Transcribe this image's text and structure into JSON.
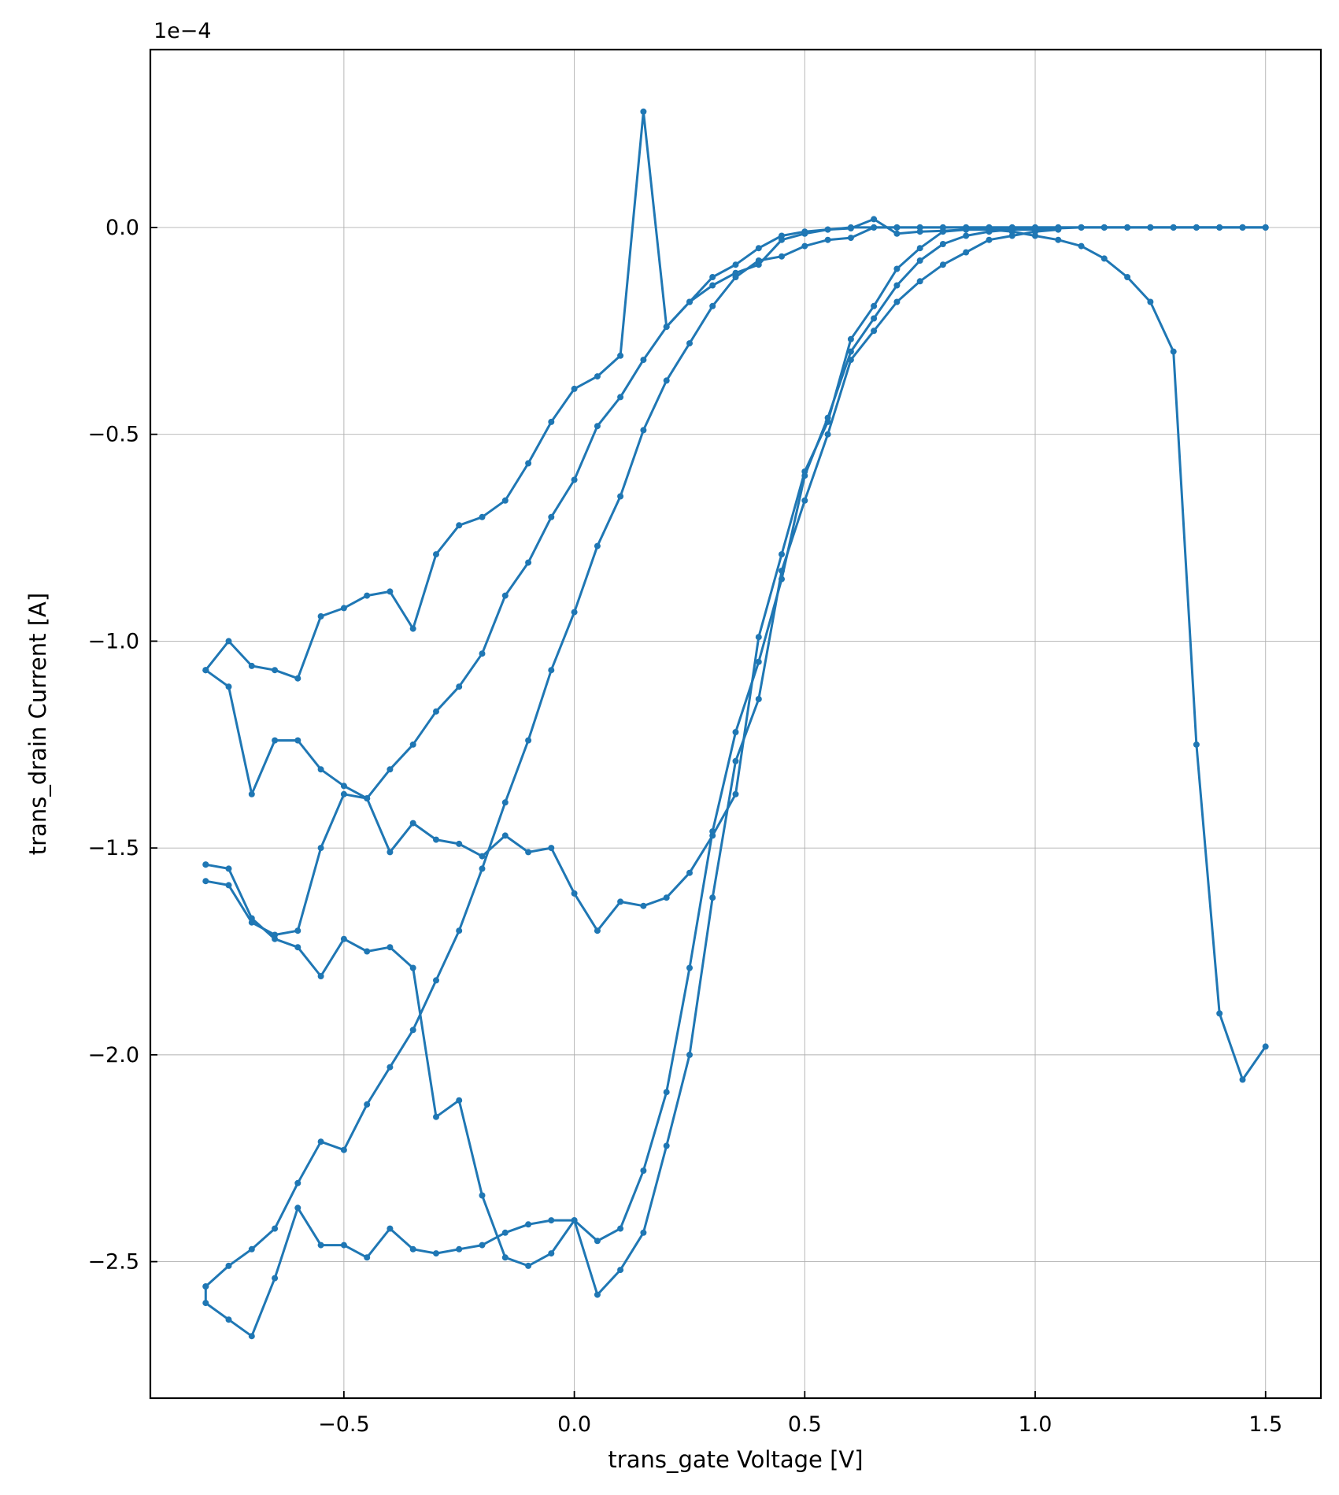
{
  "chart_data": {
    "type": "line",
    "xlabel": "trans_gate Voltage [V]",
    "ylabel": "trans_drain Current [A]",
    "y_offset_label": "1e−4",
    "xlim": [
      -0.92,
      1.62
    ],
    "ylim": [
      -2.83,
      0.43
    ],
    "grid": true,
    "color": "#1f77b4",
    "x_ticks": [
      {
        "value": -0.5,
        "label": "−0.5"
      },
      {
        "value": 0.0,
        "label": "0.0"
      },
      {
        "value": 0.5,
        "label": "0.5"
      },
      {
        "value": 1.0,
        "label": "1.0"
      },
      {
        "value": 1.5,
        "label": "1.5"
      }
    ],
    "y_ticks": [
      {
        "value": 0.0,
        "label": "0.0"
      },
      {
        "value": -0.5,
        "label": "−0.5"
      },
      {
        "value": -1.0,
        "label": "−1.0"
      },
      {
        "value": -1.5,
        "label": "−1.5"
      },
      {
        "value": -2.0,
        "label": "−2.0"
      },
      {
        "value": -2.5,
        "label": "−2.5"
      }
    ],
    "series": [
      {
        "x": [
          -0.8,
          -0.75,
          -0.7,
          -0.65,
          -0.6,
          -0.55,
          -0.5,
          -0.45,
          -0.4,
          -0.35,
          -0.3,
          -0.25,
          -0.2,
          -0.15,
          -0.1,
          -0.05,
          0.0,
          0.05,
          0.1,
          0.15,
          0.2,
          0.25,
          0.3,
          0.35,
          0.4,
          0.45,
          0.5,
          0.55,
          0.6,
          0.65,
          0.7,
          0.75,
          0.8,
          0.85,
          0.9,
          0.95,
          1.0,
          1.05,
          1.1,
          1.15,
          1.2,
          1.25,
          1.3,
          1.35,
          1.4,
          1.45,
          1.5
        ],
        "y": [
          -1.07,
          -1.0,
          -1.06,
          -1.07,
          -1.09,
          -0.94,
          -0.92,
          -0.89,
          -0.88,
          -0.97,
          -0.79,
          -0.72,
          -0.7,
          -0.66,
          -0.57,
          -0.47,
          -0.39,
          -0.36,
          -0.31,
          0.28,
          -0.24,
          -0.18,
          -0.12,
          -0.09,
          -0.05,
          -0.02,
          -0.01,
          -0.005,
          -0.002,
          0.02,
          -0.015,
          -0.01,
          -0.008,
          -0.005,
          -0.005,
          -0.005,
          -0.005,
          -0.002,
          0,
          0,
          0,
          0,
          0,
          0,
          0,
          0,
          0
        ]
      },
      {
        "x": [
          -0.8,
          -0.75,
          -0.7,
          -0.65,
          -0.6,
          -0.55,
          -0.5,
          -0.45,
          -0.4,
          -0.35,
          -0.3,
          -0.25,
          -0.2,
          -0.15,
          -0.1,
          -0.05,
          0.0,
          0.05,
          0.1,
          0.15,
          0.2,
          0.25,
          0.3,
          0.35,
          0.4,
          0.45,
          0.5,
          0.55,
          0.6,
          0.65,
          0.7,
          0.75,
          0.8,
          0.85,
          0.9,
          0.95,
          1.0,
          1.05,
          1.1,
          1.15,
          1.2,
          1.25,
          1.3,
          1.35,
          1.4,
          1.45,
          1.5
        ],
        "y": [
          -1.58,
          -1.59,
          -1.68,
          -1.71,
          -1.7,
          -1.5,
          -1.37,
          -1.38,
          -1.31,
          -1.25,
          -1.17,
          -1.11,
          -1.03,
          -0.89,
          -0.81,
          -0.7,
          -0.61,
          -0.48,
          -0.41,
          -0.32,
          -0.24,
          -0.18,
          -0.14,
          -0.11,
          -0.09,
          -0.03,
          -0.015,
          -0.005,
          0,
          0,
          0,
          0,
          0,
          0,
          0,
          0,
          0,
          0,
          0,
          0,
          0,
          0,
          0,
          0,
          0,
          0,
          0
        ]
      },
      {
        "x": [
          -0.8,
          -0.75,
          -0.7,
          -0.65,
          -0.6,
          -0.55,
          -0.5,
          -0.45,
          -0.4,
          -0.35,
          -0.3,
          -0.25,
          -0.2,
          -0.15,
          -0.1,
          -0.05,
          0.0,
          0.05,
          0.1,
          0.15,
          0.2,
          0.25,
          0.3,
          0.35,
          0.4,
          0.45,
          0.5,
          0.55,
          0.6,
          0.65,
          0.7,
          0.75,
          0.8,
          0.85,
          0.9,
          0.95,
          1.0,
          1.05,
          1.1,
          1.15,
          1.2,
          1.25,
          1.3,
          1.35,
          1.4,
          1.45,
          1.5
        ],
        "y": [
          -2.56,
          -2.51,
          -2.47,
          -2.42,
          -2.31,
          -2.21,
          -2.23,
          -2.12,
          -2.03,
          -1.94,
          -1.82,
          -1.7,
          -1.55,
          -1.39,
          -1.24,
          -1.07,
          -0.93,
          -0.77,
          -0.65,
          -0.49,
          -0.37,
          -0.28,
          -0.19,
          -0.12,
          -0.08,
          -0.07,
          -0.045,
          -0.03,
          -0.025,
          0,
          0,
          0,
          0,
          0,
          0,
          0,
          0,
          0,
          0,
          0,
          0,
          0,
          0,
          0,
          0,
          0,
          0
        ]
      },
      {
        "x": [
          -0.8,
          -0.8,
          -0.75,
          -0.7,
          -0.65,
          -0.6,
          -0.55,
          -0.5,
          -0.45,
          -0.4,
          -0.35,
          -0.3,
          -0.25,
          -0.2,
          -0.15,
          -0.1,
          -0.05,
          0.0,
          0.05,
          0.1,
          0.15,
          0.2,
          0.25,
          0.3,
          0.35,
          0.4,
          0.45,
          0.5,
          0.55,
          0.6,
          0.65,
          0.7,
          0.75,
          0.8,
          0.85,
          0.9,
          0.95,
          1.0,
          1.05,
          1.1,
          1.15,
          1.2,
          1.25,
          1.3,
          1.35,
          1.4,
          1.45,
          1.5
        ],
        "y": [
          -1.07,
          -1.07,
          -1.11,
          -1.37,
          -1.24,
          -1.24,
          -1.31,
          -1.35,
          -1.38,
          -1.51,
          -1.44,
          -1.48,
          -1.49,
          -1.52,
          -1.47,
          -1.51,
          -1.5,
          -1.61,
          -1.7,
          -1.63,
          -1.64,
          -1.62,
          -1.56,
          -1.47,
          -1.37,
          -0.99,
          -0.79,
          -0.59,
          -0.47,
          -0.27,
          -0.19,
          -0.1,
          -0.05,
          -0.01,
          -0.005,
          -0.005,
          -0.01,
          -0.02,
          -0.03,
          -0.045,
          -0.075,
          -0.12,
          -0.18,
          -0.3,
          -1.25,
          -1.9,
          -2.06,
          -1.98
        ]
      },
      {
        "x": [
          -0.8,
          -0.8,
          -0.75,
          -0.7,
          -0.65,
          -0.6,
          -0.55,
          -0.5,
          -0.45,
          -0.4,
          -0.35,
          -0.3,
          -0.25,
          -0.2,
          -0.15,
          -0.1,
          -0.05,
          0.0,
          0.05,
          0.1,
          0.15,
          0.2,
          0.25,
          0.3,
          0.35,
          0.4,
          0.45,
          0.5,
          0.55,
          0.6,
          0.65,
          0.7,
          0.75,
          0.8,
          0.85,
          0.9,
          0.95,
          1.0,
          1.05
        ],
        "y": [
          -1.54,
          -1.54,
          -1.55,
          -1.67,
          -1.72,
          -1.74,
          -1.81,
          -1.72,
          -1.75,
          -1.74,
          -1.79,
          -2.15,
          -2.11,
          -2.34,
          -2.49,
          -2.51,
          -2.48,
          -2.4,
          -2.45,
          -2.42,
          -2.28,
          -2.09,
          -1.79,
          -1.46,
          -1.22,
          -1.05,
          -0.85,
          -0.6,
          -0.46,
          -0.3,
          -0.22,
          -0.14,
          -0.08,
          -0.04,
          -0.02,
          -0.01,
          -0.005,
          -0.005,
          -0.005
        ]
      },
      {
        "x": [
          -0.8,
          -0.8,
          -0.75,
          -0.7,
          -0.65,
          -0.6,
          -0.55,
          -0.5,
          -0.45,
          -0.4,
          -0.35,
          -0.3,
          -0.25,
          -0.2,
          -0.15,
          -0.1,
          -0.05,
          0.0,
          0.05,
          0.1,
          0.15,
          0.2,
          0.25,
          0.3,
          0.35,
          0.4,
          0.45,
          0.5,
          0.55,
          0.6,
          0.65,
          0.7,
          0.75,
          0.8,
          0.85,
          0.9,
          0.95,
          1.0,
          1.05
        ],
        "y": [
          -2.56,
          -2.6,
          -2.64,
          -2.68,
          -2.54,
          -2.37,
          -2.46,
          -2.46,
          -2.49,
          -2.42,
          -2.47,
          -2.48,
          -2.47,
          -2.46,
          -2.43,
          -2.41,
          -2.4,
          -2.4,
          -2.58,
          -2.52,
          -2.43,
          -2.22,
          -2.0,
          -1.62,
          -1.29,
          -1.14,
          -0.83,
          -0.66,
          -0.5,
          -0.32,
          -0.25,
          -0.18,
          -0.13,
          -0.09,
          -0.06,
          -0.03,
          -0.02,
          -0.01,
          -0.005
        ]
      }
    ]
  }
}
